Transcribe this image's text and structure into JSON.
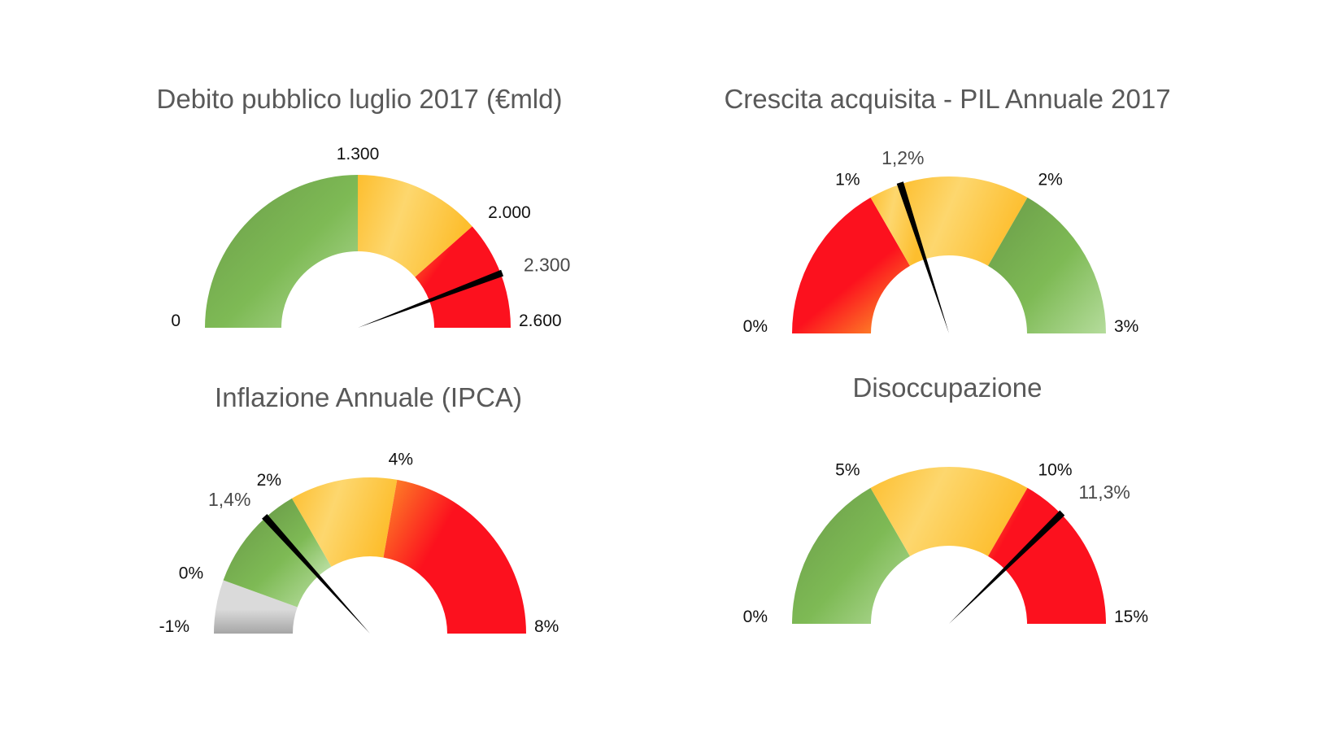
{
  "colors": {
    "green_dark": "#6A9B48",
    "green_mid": "#7EBA55",
    "green_light": "#B5DC9C",
    "yellow": "#FDBE2E",
    "yellow_light": "#FDD76E",
    "red": "#FC111E",
    "orange": "#FD8C28",
    "gray_light": "#DADADA",
    "gray_dark": "#A6A6A6",
    "needle": "#000000",
    "title": "#595959"
  },
  "chart_data": [
    {
      "type": "gauge",
      "title": "Debito pubblico luglio 2017 (€mld)",
      "min": 0,
      "max": 2600,
      "value": 2300,
      "value_label": "2.300",
      "ticks": [
        {
          "value": 0,
          "label": "0"
        },
        {
          "value": 1300,
          "label": "1.300"
        },
        {
          "value": 2000,
          "label": "2.000"
        },
        {
          "value": 2600,
          "label": "2.600"
        }
      ],
      "bands": [
        {
          "from": 0,
          "to": 1300,
          "color": "green"
        },
        {
          "from": 1300,
          "to": 2000,
          "color": "yellow"
        },
        {
          "from": 2000,
          "to": 2300,
          "color": "orange-red"
        },
        {
          "from": 2300,
          "to": 2600,
          "color": "red"
        }
      ]
    },
    {
      "type": "gauge",
      "title": "Crescita acquisita - PIL Annuale 2017",
      "min": 0,
      "max": 3,
      "value": 1.2,
      "value_label": "1,2%",
      "ticks": [
        {
          "value": 0,
          "label": "0%"
        },
        {
          "value": 1,
          "label": "1%"
        },
        {
          "value": 2,
          "label": "2%"
        },
        {
          "value": 3,
          "label": "3%"
        }
      ],
      "bands": [
        {
          "from": 0,
          "to": 1,
          "color": "red-orange"
        },
        {
          "from": 1,
          "to": 1.2,
          "color": "yellow"
        },
        {
          "from": 1.2,
          "to": 2,
          "color": "yellow"
        },
        {
          "from": 2,
          "to": 3,
          "color": "green"
        }
      ]
    },
    {
      "type": "gauge",
      "title": "Inflazione Annuale (IPCA)",
      "min": -1,
      "max": 8,
      "value": 1.4,
      "value_label": "1,4%",
      "ticks": [
        {
          "value": -1,
          "label": "-1%"
        },
        {
          "value": 0,
          "label": "0%"
        },
        {
          "value": 2,
          "label": "2%"
        },
        {
          "value": 4,
          "label": "4%"
        },
        {
          "value": 8,
          "label": "8%"
        }
      ],
      "bands": [
        {
          "from": -1,
          "to": 0,
          "color": "gray"
        },
        {
          "from": 0,
          "to": 1.4,
          "color": "green"
        },
        {
          "from": 1.4,
          "to": 2,
          "color": "green-dark"
        },
        {
          "from": 2,
          "to": 4,
          "color": "yellow"
        },
        {
          "from": 4,
          "to": 8,
          "color": "orange-red"
        }
      ]
    },
    {
      "type": "gauge",
      "title": "Disoccupazione",
      "min": 0,
      "max": 15,
      "value": 11.3,
      "value_label": "11,3%",
      "ticks": [
        {
          "value": 0,
          "label": "0%"
        },
        {
          "value": 5,
          "label": "5%"
        },
        {
          "value": 10,
          "label": "10%"
        },
        {
          "value": 15,
          "label": "15%"
        }
      ],
      "bands": [
        {
          "from": 0,
          "to": 5,
          "color": "green"
        },
        {
          "from": 5,
          "to": 10,
          "color": "yellow"
        },
        {
          "from": 10,
          "to": 11.3,
          "color": "orange-red"
        },
        {
          "from": 11.3,
          "to": 15,
          "color": "red"
        }
      ]
    }
  ]
}
